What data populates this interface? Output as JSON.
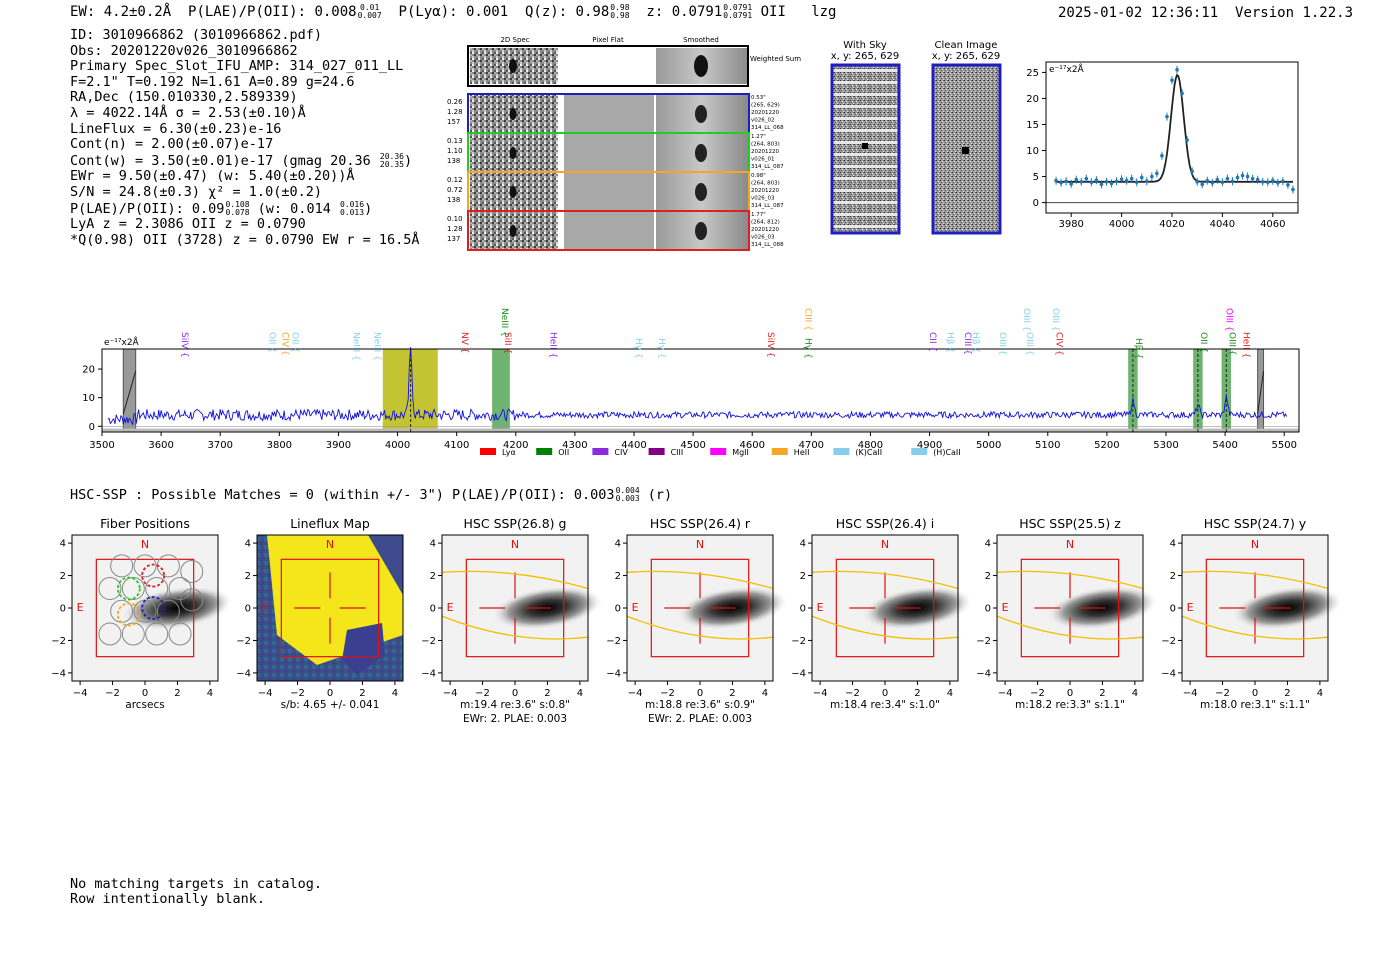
{
  "header": {
    "ew": "EW: 4.2±0.2Å",
    "plae_label": "P(LAE)/P(OII): 0.008",
    "plae_hi": "0.01",
    "plae_lo": "0.007",
    "plya": "P(Lyα): 0.001",
    "q": "Q(z): 0.98",
    "q_hi": "0.98",
    "q_lo": "0.98",
    "z": "z: 0.0791",
    "z_hi": "0.0791",
    "z_lo": "0.0791",
    "line": "OII",
    "tag": "lzg",
    "datetime": "2025-01-02 12:36:11",
    "version": "Version 1.22.3"
  },
  "info": {
    "id": "ID: 3010966862 (3010966862.pdf)",
    "obs": "Obs: 20201220v026_3010966862",
    "primary": "Primary Spec_Slot_IFU_AMP: 314_027_011_LL",
    "f": "F=2.1\"  T=0.192  N=1.61  A=0.89  g=24.6",
    "radec": "RA,Dec (150.010330,2.589339)",
    "lambda": "λ = 4022.14Å  σ = 2.53(±0.10)Å",
    "lineflux": "LineFlux = 6.30(±0.23)e-16",
    "contn": "Cont(n) = 2.00(±0.07)e-17",
    "contw": "Cont(w) = 3.50(±0.01)e-17 (gmag 20.36",
    "contw_hi": "20.36",
    "contw_lo": "20.35",
    "contw_end": ")",
    "ewr": "EWr = 9.50(±0.47) (w: 5.40(±0.20))Å",
    "sn": "S/N = 24.8(±0.3)  χ² = 1.0(±0.2)",
    "plae": "P(LAE)/P(OII): 0.09",
    "plae_hi": "0.108",
    "plae_lo": "0.078",
    "plae_w": "(w: 0.014",
    "plae_w_hi": "0.016",
    "plae_w_lo": "0.013",
    "plae_end": ")",
    "lya": "LyA z = 2.3086  OII z = 0.0790",
    "q": "*Q(0.98) OII (3728) z = 0.0790  EW r = 16.5Å"
  },
  "cutouts": {
    "col_headers": [
      "2D Spec",
      "Pixel Flat",
      "Smoothed"
    ],
    "weighted_sum": "Weighted Sum",
    "rows": [
      {
        "stats": [
          "0.26",
          "1.28",
          "157"
        ],
        "info": [
          "0.53\"",
          "(265, 629)",
          "20201220",
          "v026_02",
          "314_LL_068"
        ],
        "color": "#1f1fbf"
      },
      {
        "stats": [
          "0.13",
          "1.10",
          "138"
        ],
        "info": [
          "1.27\"",
          "(264, 803)",
          "20201220",
          "v026_01",
          "314_LL_087"
        ],
        "color": "#22cc22"
      },
      {
        "stats": [
          "0.12",
          "0.72",
          "138"
        ],
        "info": [
          "0.98\"",
          "(264, 803)",
          "20201220",
          "v026_03",
          "314_LL_087"
        ],
        "color": "#f5a623"
      },
      {
        "stats": [
          "0.10",
          "1.28",
          "137"
        ],
        "info": [
          "1.77\"",
          "(264, 812)",
          "20201220",
          "v026_03",
          "314_LL_088"
        ],
        "color": "#e02020"
      }
    ],
    "with_sky_title": "With Sky",
    "with_sky_coords": "x, y: 265, 629",
    "clean_title": "Clean Image",
    "clean_coords": "x, y: 265, 629"
  },
  "chart_data": [
    {
      "type": "scatter",
      "name": "line-fit-zoom",
      "ylabel": "e⁻¹⁷x2Å",
      "xlim": [
        3970,
        4070
      ],
      "ylim": [
        -2,
        27
      ],
      "xticks": [
        3980,
        4000,
        4020,
        4040,
        4060
      ],
      "yticks": [
        0,
        5,
        10,
        15,
        20,
        25
      ],
      "x": [
        3974,
        3976,
        3978,
        3980,
        3982,
        3984,
        3986,
        3988,
        3990,
        3992,
        3994,
        3996,
        3998,
        4000,
        4002,
        4004,
        4006,
        4008,
        4010,
        4012,
        4014,
        4016,
        4018,
        4020,
        4022,
        4024,
        4026,
        4028,
        4030,
        4032,
        4034,
        4036,
        4038,
        4040,
        4042,
        4044,
        4046,
        4048,
        4050,
        4052,
        4054,
        4056,
        4058,
        4060,
        4062,
        4064,
        4066,
        4068
      ],
      "y": [
        4.2,
        3.8,
        4.1,
        3.6,
        4.4,
        4.0,
        4.6,
        3.9,
        4.3,
        3.5,
        4.0,
        3.7,
        4.1,
        4.5,
        4.2,
        4.6,
        3.9,
        4.8,
        4.1,
        5.0,
        5.6,
        9.0,
        16.5,
        23.5,
        25.5,
        21.0,
        12.0,
        6.0,
        4.0,
        3.5,
        4.2,
        3.8,
        4.4,
        3.9,
        4.6,
        4.1,
        4.8,
        5.2,
        5.0,
        4.6,
        4.4,
        4.0,
        3.9,
        4.2,
        3.8,
        4.1,
        3.4,
        2.5
      ],
      "fit": {
        "center": 4022.14,
        "sigma": 2.53,
        "amplitude": 20.5,
        "baseline": 4.0
      }
    },
    {
      "type": "line",
      "name": "full-spectrum",
      "ylabel": "e⁻¹⁷x2Å",
      "xlim": [
        3500,
        5525
      ],
      "ylim": [
        -2,
        27
      ],
      "xticks": [
        3500,
        3600,
        3700,
        3800,
        3900,
        4000,
        4100,
        4200,
        4300,
        4400,
        4500,
        4600,
        4700,
        4800,
        4900,
        5000,
        5100,
        5200,
        5300,
        5400,
        5500
      ],
      "yticks": [
        0,
        10,
        20
      ],
      "continuum": 4.0,
      "emission": [
        {
          "center": 4022.14,
          "amplitude": 22.5,
          "sigma": 2.53
        },
        {
          "center": 5244,
          "amplitude": 5.0,
          "sigma": 2.5
        },
        {
          "center": 5354,
          "amplitude": 3.5,
          "sigma": 2.5
        },
        {
          "center": 5402,
          "amplitude": 6.0,
          "sigma": 2.5
        }
      ],
      "highlight_bands": [
        {
          "x0": 3975,
          "x1": 4068,
          "color": "#b5b500"
        },
        {
          "x0": 4160,
          "x1": 4190,
          "color": "#4aa04a"
        },
        {
          "x0": 5236,
          "x1": 5252,
          "color": "#4aa04a"
        },
        {
          "x0": 5346,
          "x1": 5362,
          "color": "#4aa04a"
        },
        {
          "x0": 5394,
          "x1": 5410,
          "color": "#4aa04a"
        }
      ],
      "masked_bands": [
        {
          "x0": 3536,
          "x1": 3557
        },
        {
          "x0": 5455,
          "x1": 5465
        }
      ],
      "line_labels": [
        {
          "text": "SiIV",
          "x": 3630,
          "color": "#8a2be2",
          "tier": 1
        },
        {
          "text": "OII",
          "x": 3778,
          "color": "#87ceeb",
          "tier": 1
        },
        {
          "text": "CIV",
          "x": 3800,
          "color": "#f5a623",
          "tier": 1
        },
        {
          "text": "OII",
          "x": 3817,
          "color": "#87ceeb",
          "tier": 1
        },
        {
          "text": "NeIII",
          "x": 3920,
          "color": "#87ceeb",
          "tier": 1
        },
        {
          "text": "NeIII",
          "x": 3956,
          "color": "#87ceeb",
          "tier": 1
        },
        {
          "text": "NV",
          "x": 4104,
          "color": "#e02020",
          "tier": 1
        },
        {
          "text": "NeIII",
          "x": 4172,
          "color": "#1a8c1a",
          "tier": 0
        },
        {
          "text": "SiII",
          "x": 4177,
          "color": "#e02020",
          "tier": 1
        },
        {
          "text": "HeII",
          "x": 4254,
          "color": "#8a2be2",
          "tier": 1
        },
        {
          "text": "Hγ",
          "x": 4398,
          "color": "#87ceeb",
          "tier": 2
        },
        {
          "text": "Hγ",
          "x": 4437,
          "color": "#87ceeb",
          "tier": 2
        },
        {
          "text": "SiIV",
          "x": 4622,
          "color": "#e02020",
          "tier": 1
        },
        {
          "text": "CIII",
          "x": 4685,
          "color": "#f5a623",
          "tier": 0
        },
        {
          "text": "Hγ",
          "x": 4685,
          "color": "#1a8c1a",
          "tier": 2
        },
        {
          "text": "CII",
          "x": 4896,
          "color": "#8a2be2",
          "tier": 1
        },
        {
          "text": "Hβ",
          "x": 4925,
          "color": "#87ceeb",
          "tier": 1
        },
        {
          "text": "CIII",
          "x": 4955,
          "color": "#8a2be2",
          "tier": 1
        },
        {
          "text": "Hβ",
          "x": 4968,
          "color": "#87ceeb",
          "tier": 1
        },
        {
          "text": "OIII",
          "x": 5014,
          "color": "#87ceeb",
          "tier": 1
        },
        {
          "text": "OIII",
          "x": 5055,
          "color": "#87ceeb",
          "tier": 0
        },
        {
          "text": "OIII",
          "x": 5060,
          "color": "#87ceeb",
          "tier": 1
        },
        {
          "text": "OIII",
          "x": 5104,
          "color": "#87ceeb",
          "tier": 0
        },
        {
          "text": "CIV",
          "x": 5110,
          "color": "#e02020",
          "tier": 1
        },
        {
          "text": "Hβ",
          "x": 5244,
          "color": "#1a8c1a",
          "tier": 2
        },
        {
          "text": "OII",
          "x": 5354,
          "color": "#1a8c1a",
          "tier": 1
        },
        {
          "text": "OIII",
          "x": 5397,
          "color": "#ff00ff",
          "tier": 0
        },
        {
          "text": "OIII",
          "x": 5402,
          "color": "#1a8c1a",
          "tier": 1
        },
        {
          "text": "HeII",
          "x": 5426,
          "color": "#e02020",
          "tier": 1
        }
      ],
      "legend": [
        {
          "label": "Lyα",
          "color": "#ff0000"
        },
        {
          "label": "OII",
          "color": "#008000"
        },
        {
          "label": "CIV",
          "color": "#8a2be2"
        },
        {
          "label": "CIII",
          "color": "#800080"
        },
        {
          "label": "MgII",
          "color": "#ff00ff"
        },
        {
          "label": "HeII",
          "color": "#f5a623"
        },
        {
          "label": "(K)CaII",
          "color": "#87ceeb"
        },
        {
          "label": "(H)CaII",
          "color": "#87ceeb"
        }
      ]
    }
  ],
  "hsc": {
    "title": "HSC-SSP : Possible Matches = 0 (within +/- 3\")  P(LAE)/P(OII): 0.003",
    "title_hi": "0.004",
    "title_lo": "0.003",
    "title_end": "(r)",
    "panels": [
      {
        "title": "Fiber Positions",
        "xlabel": "arcsecs",
        "caption2": ""
      },
      {
        "title": "Lineflux Map",
        "xlabel": "s/b: 4.65 +/- 0.041",
        "caption2": ""
      },
      {
        "title": "HSC SSP(26.8) g",
        "xlabel": "m:19.4  re:3.6\"  s:0.8\"",
        "caption2": "EWr: 2. PLAE: 0.003"
      },
      {
        "title": "HSC SSP(26.4) r",
        "xlabel": "m:18.8  re:3.6\"  s:0.9\"",
        "caption2": "EWr: 2. PLAE: 0.003"
      },
      {
        "title": "HSC SSP(26.4) i",
        "xlabel": "m:18.4  re:3.4\"  s:1.0\"",
        "caption2": ""
      },
      {
        "title": "HSC SSP(25.5) z",
        "xlabel": "m:18.2  re:3.3\"  s:1.1\"",
        "caption2": ""
      },
      {
        "title": "HSC SSP(24.7) y",
        "xlabel": "m:18.0  re:3.1\"  s:1.1\"",
        "caption2": ""
      }
    ],
    "axis_ticks": [
      "−4",
      "−2",
      "0",
      "2",
      "4"
    ],
    "north": "N",
    "east": "E"
  },
  "footer": {
    "line1": "No matching targets in catalog.",
    "line2": "Row intentionally blank."
  }
}
